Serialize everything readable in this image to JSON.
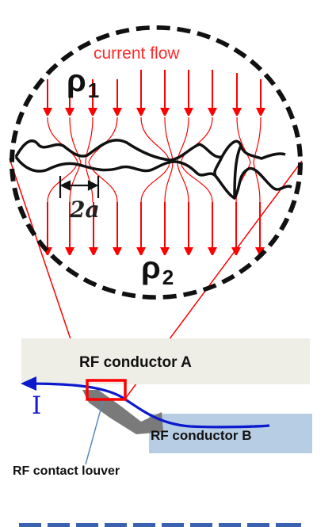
{
  "labels": {
    "current_flow": "current flow",
    "rho1_symbol": "ρ",
    "rho1_sub": "1",
    "rho2_symbol": "ρ",
    "rho2_sub": "2",
    "contact_width": "2a",
    "conductor_a": "RF conductor A",
    "conductor_b": "RF conductor  B",
    "current_symbol": "I",
    "louver": "RF contact louver"
  },
  "colors": {
    "current_lines": "#ff0000",
    "interface": "#111111",
    "dashed_circle": "#111111",
    "conductor_a_fill": "#eeeee6",
    "conductor_b_fill": "#b7cde4",
    "louver_fill": "#7a7a7a",
    "current_path": "#0a1acc",
    "highlight_box": "#ff0000",
    "zoom_lines": "#ff0000",
    "bottom_dashes": "#3b62b0"
  }
}
